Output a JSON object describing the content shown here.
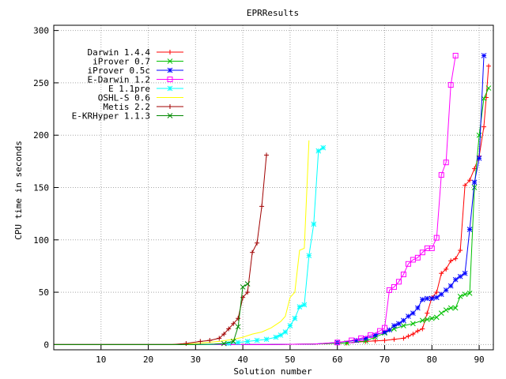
{
  "chart_data": {
    "type": "line",
    "title": "EPRResults",
    "xlabel": "Solution number",
    "ylabel": "CPU time in seconds",
    "xlim": [
      0,
      93
    ],
    "ylim": [
      -5,
      305
    ],
    "xticks": [
      10,
      20,
      30,
      40,
      50,
      60,
      70,
      80,
      90
    ],
    "yticks": [
      0,
      50,
      100,
      150,
      200,
      250,
      300
    ],
    "grid": true,
    "legend_position": "top-left",
    "series": [
      {
        "name": "Darwin 1.4.4",
        "color": "#ff0000",
        "marker": "plus",
        "points": [
          [
            0,
            0
          ],
          [
            45,
            0
          ],
          [
            55,
            0.5
          ],
          [
            62,
            1.5
          ],
          [
            66,
            3
          ],
          [
            68,
            3.5
          ],
          [
            70,
            4
          ],
          [
            72,
            5
          ],
          [
            74,
            6
          ],
          [
            75,
            8
          ],
          [
            76,
            10
          ],
          [
            77,
            13
          ],
          [
            78,
            15
          ],
          [
            79,
            30
          ],
          [
            80,
            45
          ],
          [
            81,
            50
          ],
          [
            82,
            68
          ],
          [
            83,
            72
          ],
          [
            84,
            80
          ],
          [
            85,
            82
          ],
          [
            86,
            90
          ],
          [
            87,
            152
          ],
          [
            88,
            157
          ],
          [
            89,
            168
          ],
          [
            90,
            180
          ],
          [
            91,
            208
          ],
          [
            91.5,
            236
          ],
          [
            92,
            266
          ]
        ]
      },
      {
        "name": "iProver 0.7",
        "color": "#00c000",
        "marker": "x",
        "points": [
          [
            0,
            0
          ],
          [
            45,
            0
          ],
          [
            55,
            0.5
          ],
          [
            62,
            1.5
          ],
          [
            66,
            3.5
          ],
          [
            68,
            7
          ],
          [
            70,
            11
          ],
          [
            72,
            15
          ],
          [
            74,
            18
          ],
          [
            76,
            20
          ],
          [
            78,
            23
          ],
          [
            79,
            24
          ],
          [
            80,
            25
          ],
          [
            81,
            26
          ],
          [
            82,
            30
          ],
          [
            83,
            33
          ],
          [
            84,
            35
          ],
          [
            85,
            35
          ],
          [
            86,
            46
          ],
          [
            87,
            48
          ],
          [
            88,
            49
          ],
          [
            89,
            150
          ],
          [
            90,
            200
          ],
          [
            91,
            235
          ],
          [
            92,
            245
          ]
        ]
      },
      {
        "name": "iProver 0.5c",
        "color": "#0000ff",
        "marker": "star",
        "points": [
          [
            0,
            0
          ],
          [
            45,
            0
          ],
          [
            55,
            0.5
          ],
          [
            60,
            2
          ],
          [
            64,
            4
          ],
          [
            66,
            6
          ],
          [
            68,
            9
          ],
          [
            70,
            12
          ],
          [
            71,
            14
          ],
          [
            72,
            18
          ],
          [
            73,
            20
          ],
          [
            74,
            23
          ],
          [
            75,
            27
          ],
          [
            76,
            30
          ],
          [
            77,
            35
          ],
          [
            78,
            43
          ],
          [
            79,
            44
          ],
          [
            80,
            44
          ],
          [
            81,
            45
          ],
          [
            82,
            48
          ],
          [
            83,
            52
          ],
          [
            84,
            56
          ],
          [
            85,
            62
          ],
          [
            86,
            65
          ],
          [
            87,
            68
          ],
          [
            88,
            110
          ],
          [
            89,
            155
          ],
          [
            90,
            178
          ],
          [
            91,
            276
          ]
        ]
      },
      {
        "name": "E-Darwin 1.2",
        "color": "#ff00ff",
        "marker": "box",
        "points": [
          [
            0,
            0
          ],
          [
            45,
            0
          ],
          [
            55,
            0.5
          ],
          [
            60,
            2
          ],
          [
            63,
            4
          ],
          [
            65,
            6
          ],
          [
            67,
            9
          ],
          [
            69,
            13
          ],
          [
            70,
            16
          ],
          [
            71,
            52
          ],
          [
            72,
            55
          ],
          [
            73,
            60
          ],
          [
            74,
            67
          ],
          [
            75,
            77
          ],
          [
            76,
            81
          ],
          [
            77,
            83
          ],
          [
            78,
            88
          ],
          [
            79,
            92
          ],
          [
            80,
            92
          ],
          [
            81,
            102
          ],
          [
            82,
            162
          ],
          [
            83,
            174
          ],
          [
            84,
            248
          ],
          [
            85,
            276
          ]
        ]
      },
      {
        "name": "E 1.1pre",
        "color": "#00ffff",
        "marker": "star",
        "points": [
          [
            0,
            0
          ],
          [
            33,
            0
          ],
          [
            37,
            1
          ],
          [
            39,
            2
          ],
          [
            41,
            3
          ],
          [
            43,
            4
          ],
          [
            45,
            5
          ],
          [
            47,
            7
          ],
          [
            48,
            9
          ],
          [
            49,
            12
          ],
          [
            50,
            18
          ],
          [
            51,
            25
          ],
          [
            52,
            36
          ],
          [
            53,
            38
          ],
          [
            54,
            85
          ],
          [
            55,
            115
          ],
          [
            56,
            185
          ],
          [
            57,
            188
          ]
        ]
      },
      {
        "name": "OSHL-S 0.6",
        "color": "#ffff00",
        "marker": "none",
        "points": [
          [
            0,
            0
          ],
          [
            25,
            0
          ],
          [
            30,
            1
          ],
          [
            35,
            3
          ],
          [
            38,
            5
          ],
          [
            40,
            7
          ],
          [
            42,
            10
          ],
          [
            44,
            12
          ],
          [
            46,
            16
          ],
          [
            48,
            22
          ],
          [
            49,
            27
          ],
          [
            50,
            45
          ],
          [
            51,
            50
          ],
          [
            52,
            90
          ],
          [
            53,
            92
          ],
          [
            54,
            195
          ]
        ]
      },
      {
        "name": "Metis 2.2",
        "color": "#a00000",
        "marker": "plus",
        "points": [
          [
            0,
            0
          ],
          [
            25,
            0
          ],
          [
            28,
            1
          ],
          [
            31,
            3
          ],
          [
            33,
            4
          ],
          [
            35,
            6
          ],
          [
            36,
            10
          ],
          [
            37,
            15
          ],
          [
            38,
            20
          ],
          [
            39,
            25
          ],
          [
            40,
            45
          ],
          [
            41,
            50
          ],
          [
            42,
            88
          ],
          [
            43,
            97
          ],
          [
            44,
            132
          ],
          [
            45,
            181
          ]
        ]
      },
      {
        "name": "E-KRHyper 1.1.3",
        "color": "#008800",
        "marker": "x",
        "points": [
          [
            0,
            0
          ],
          [
            30,
            0
          ],
          [
            34,
            0.5
          ],
          [
            36,
            1
          ],
          [
            38,
            3
          ],
          [
            39,
            17
          ],
          [
            40,
            55
          ],
          [
            41,
            58
          ]
        ]
      }
    ]
  }
}
